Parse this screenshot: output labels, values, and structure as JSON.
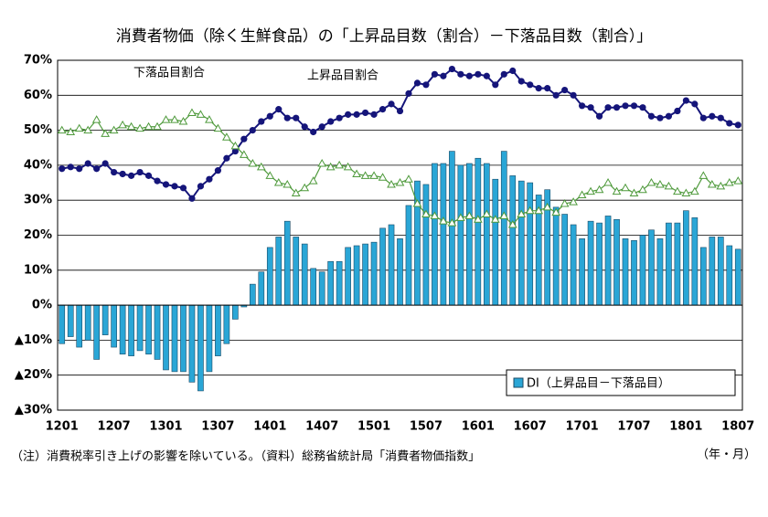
{
  "chart_data": {
    "type": "bar",
    "title": "消費者物価（除く生鮮食品）の「上昇品目数（割合）－下落品目数（割合）」",
    "note": "（注）消費税率引き上げの影響を除いている。（資料）総務省統計局「消費者物価指数」",
    "x_unit": "（年・月）",
    "categories": [
      "1201",
      null,
      null,
      null,
      null,
      null,
      "1207",
      null,
      null,
      null,
      null,
      null,
      "1301",
      null,
      null,
      null,
      null,
      null,
      "1307",
      null,
      null,
      null,
      null,
      null,
      "1401",
      null,
      null,
      null,
      null,
      null,
      "1407",
      null,
      null,
      null,
      null,
      null,
      "1501",
      null,
      null,
      null,
      null,
      null,
      "1507",
      null,
      null,
      null,
      null,
      null,
      "1601",
      null,
      null,
      null,
      null,
      null,
      "1607",
      null,
      null,
      null,
      null,
      null,
      "1701",
      null,
      null,
      null,
      null,
      null,
      "1707",
      null,
      null,
      null,
      null,
      null,
      "1801",
      null,
      null,
      null,
      null,
      null,
      "1807"
    ],
    "ylim": [
      -30,
      70
    ],
    "yticks": [
      {
        "value": -30,
        "label": "▲30%"
      },
      {
        "value": -20,
        "label": "▲20%"
      },
      {
        "value": -10,
        "label": "▲10%"
      },
      {
        "value": 0,
        "label": "0%"
      },
      {
        "value": 10,
        "label": "10%"
      },
      {
        "value": 20,
        "label": "20%"
      },
      {
        "value": 30,
        "label": "30%"
      },
      {
        "value": 40,
        "label": "40%"
      },
      {
        "value": 50,
        "label": "50%"
      },
      {
        "value": 60,
        "label": "60%"
      },
      {
        "value": 70,
        "label": "70%"
      }
    ],
    "grid": true,
    "legend": "bottom-right",
    "series": [
      {
        "name": "DI（上昇品目－下落品目）",
        "type": "bar",
        "color": "#2aa6d6",
        "values": [
          -11,
          -9,
          -12,
          -10,
          -15.5,
          -8.5,
          -12,
          -14,
          -14.5,
          -13,
          -14,
          -15.5,
          -18.5,
          -19,
          -19,
          -22,
          -24.5,
          -19,
          -14.5,
          -11,
          -4,
          -0.5,
          6,
          9.5,
          16.5,
          19.5,
          24,
          19.5,
          17.5,
          10.5,
          9.5,
          12.5,
          12.5,
          16.5,
          17,
          17.5,
          18,
          22,
          23,
          19,
          28.5,
          35.5,
          34.5,
          40.5,
          40.5,
          44,
          40,
          40.5,
          42,
          40.5,
          36,
          44,
          37,
          35.5,
          35,
          31.5,
          33,
          28,
          26,
          23,
          19,
          24,
          23.5,
          25.5,
          24.5,
          19,
          18.5,
          20,
          21.5,
          19,
          23.5,
          23.5,
          27,
          25,
          16.5,
          19.5,
          19.5,
          17,
          16
        ]
      },
      {
        "name": "上昇品目割合",
        "type": "line",
        "marker": "circle",
        "color": "#15157a",
        "values": [
          39,
          39.5,
          39,
          40.5,
          39,
          40.5,
          38,
          37.5,
          37,
          38,
          37,
          35.5,
          34.5,
          34,
          33.5,
          30.5,
          34,
          36,
          38.5,
          42,
          44,
          47.5,
          50,
          52.5,
          54,
          56,
          53.5,
          53.5,
          51,
          49.5,
          51,
          52.5,
          53.5,
          54.5,
          54.5,
          55,
          54.5,
          56,
          57.5,
          55.5,
          60.5,
          63.5,
          63,
          66,
          65.5,
          67.5,
          66,
          65.5,
          66,
          65.5,
          63,
          66,
          67,
          64,
          63,
          62,
          62,
          60,
          61.5,
          60,
          57,
          56.5,
          54,
          56.5,
          56.5,
          57,
          57,
          56.5,
          54,
          53.5,
          54,
          55.5,
          58.5,
          57.5,
          53.5,
          54,
          53.5,
          52,
          51.5
        ]
      },
      {
        "name": "下落品目割合",
        "type": "line",
        "marker": "triangle",
        "color": "#4f9a3c",
        "values": [
          50,
          49.5,
          50.5,
          50,
          53,
          49,
          50,
          51.5,
          51,
          50.5,
          51,
          51,
          53,
          53,
          52.5,
          55,
          54.5,
          53,
          50.5,
          48,
          45.5,
          43,
          40.5,
          39.5,
          37,
          35,
          34.5,
          32,
          33.5,
          35.5,
          40.5,
          39.5,
          40,
          39.5,
          37.5,
          37,
          37,
          36.5,
          34.5,
          35,
          36,
          29,
          26,
          25.5,
          24,
          23.5,
          25,
          25.5,
          24.5,
          26,
          24.5,
          25.5,
          23,
          26,
          27,
          27,
          28,
          26.5,
          29,
          29.5,
          31.5,
          32.5,
          33,
          35,
          32.5,
          33.5,
          32,
          33,
          35,
          34.5,
          34,
          32.5,
          32,
          32.5,
          37,
          34.5,
          34,
          35,
          35.5
        ]
      }
    ]
  }
}
